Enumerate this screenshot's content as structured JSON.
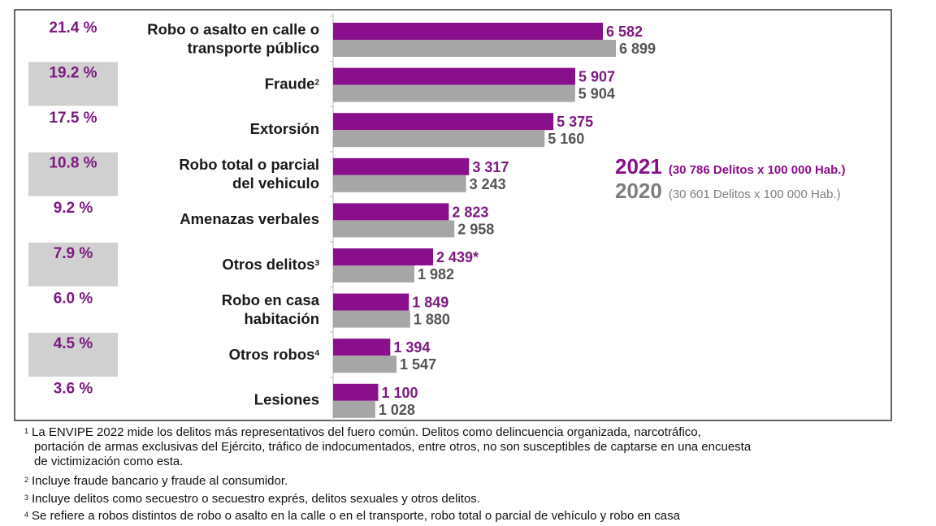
{
  "chart_data": {
    "type": "bar",
    "orientation": "horizontal",
    "categories": [
      {
        "lines": [
          "Robo o asalto en calle o",
          "transporte público"
        ],
        "sup": ""
      },
      {
        "lines": [
          "Fraude"
        ],
        "sup": "2"
      },
      {
        "lines": [
          "Extorsión"
        ],
        "sup": ""
      },
      {
        "lines": [
          "Robo total o parcial",
          "del vehiculo"
        ],
        "sup": ""
      },
      {
        "lines": [
          "Amenazas verbales"
        ],
        "sup": ""
      },
      {
        "lines": [
          "Otros delitos"
        ],
        "sup": "3"
      },
      {
        "lines": [
          "Robo en casa",
          "habitación"
        ],
        "sup": ""
      },
      {
        "lines": [
          "Otros robos"
        ],
        "sup": "4"
      },
      {
        "lines": [
          "Lesiones"
        ],
        "sup": ""
      }
    ],
    "percentages": [
      "21.4 %",
      "19.2 %",
      "17.5 %",
      "10.8 %",
      "9.2 %",
      "7.9 %",
      "6.0 %",
      "4.5 %",
      "3.6 %"
    ],
    "series": [
      {
        "name": "2021",
        "color": "#8a0f8c",
        "values": [
          6582,
          5907,
          5375,
          3317,
          2823,
          2439,
          1849,
          1394,
          1100
        ],
        "labels": [
          "6 582",
          "5 907",
          "5 375",
          "3 317",
          "2 823",
          "2 439*",
          "1 849",
          "1 394",
          "1 100"
        ]
      },
      {
        "name": "2020",
        "color": "#a6a6a6",
        "values": [
          6899,
          5904,
          5160,
          3243,
          2958,
          1982,
          1880,
          1547,
          1028
        ],
        "labels": [
          "6 899",
          "5 904",
          "5 160",
          "3 243",
          "2 958",
          "1 982",
          "1 880",
          "1 547",
          "1 028"
        ]
      }
    ],
    "legend": [
      {
        "year": "2021",
        "text": "(30 786 Delitos x 100 000 Hab.)",
        "color": "#8a0f8c"
      },
      {
        "year": "2020",
        "text": "(30 601  Delitos x 100 000 Hab.)",
        "color": "#7f7f7f"
      }
    ],
    "legend_position": "right",
    "xlim": [
      0,
      7000
    ],
    "grid": false
  },
  "footnotes": {
    "fn1": {
      "mark": "1",
      "line1": "La ENVIPE 2022 mide los delitos más representativos del fuero común. Delitos como delincuencia organizada, narcotráfico,",
      "line2": "portación de armas exclusivas del Ejército, tráfico de indocumentados, entre otros, no son susceptibles de captarse en una encuesta",
      "line3": "de victimización como esta."
    },
    "fn2": {
      "mark": "2",
      "text": "Incluye fraude bancario y fraude al consumidor."
    },
    "fn3": {
      "mark": "3",
      "text": "Incluye delitos como secuestro o secuestro exprés, delitos sexuales y otros delitos."
    },
    "fn4": {
      "mark": "4",
      "text": "Se refiere a robos distintos de robo o asalto en la calle o en el transporte, robo total o parcial de vehículo y robo en casa"
    }
  }
}
